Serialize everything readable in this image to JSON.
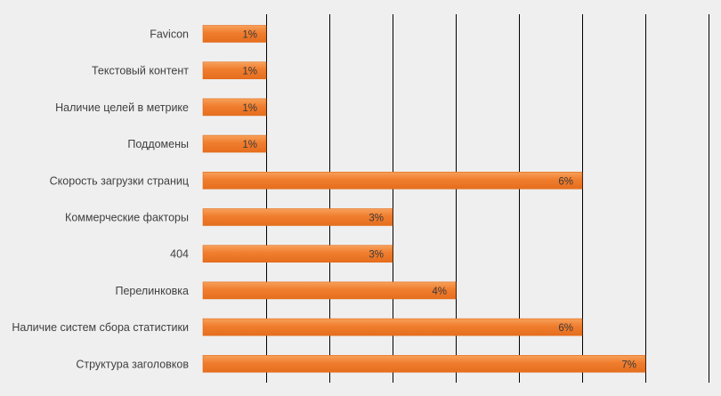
{
  "chart_data": {
    "type": "bar",
    "orientation": "horizontal",
    "title": "",
    "xlabel": "",
    "ylabel": "",
    "xlim": [
      0,
      8
    ],
    "grid": true,
    "legend": "none",
    "categories": [
      "Favicon",
      "Текстовый контент",
      "Наличие целей в метрике",
      "Поддомены",
      "Скорость загрузки страниц",
      "Коммерческие факторы",
      "404",
      "Перелинковка",
      "Наличие систем сбора статистики",
      "Структура заголовков"
    ],
    "values": [
      1,
      1,
      1,
      1,
      6,
      3,
      3,
      4,
      6,
      7
    ],
    "data_labels": [
      "1%",
      "1%",
      "1%",
      "1%",
      "6%",
      "3%",
      "3%",
      "4%",
      "6%",
      "7%"
    ],
    "colors": {
      "bar_fill": "#f07d2e",
      "bar_fill_light": "#f7a15a",
      "bar_edge": "#e36b1b",
      "gridline": "#000000",
      "background": "#efefef",
      "label_text": "#404040"
    }
  }
}
